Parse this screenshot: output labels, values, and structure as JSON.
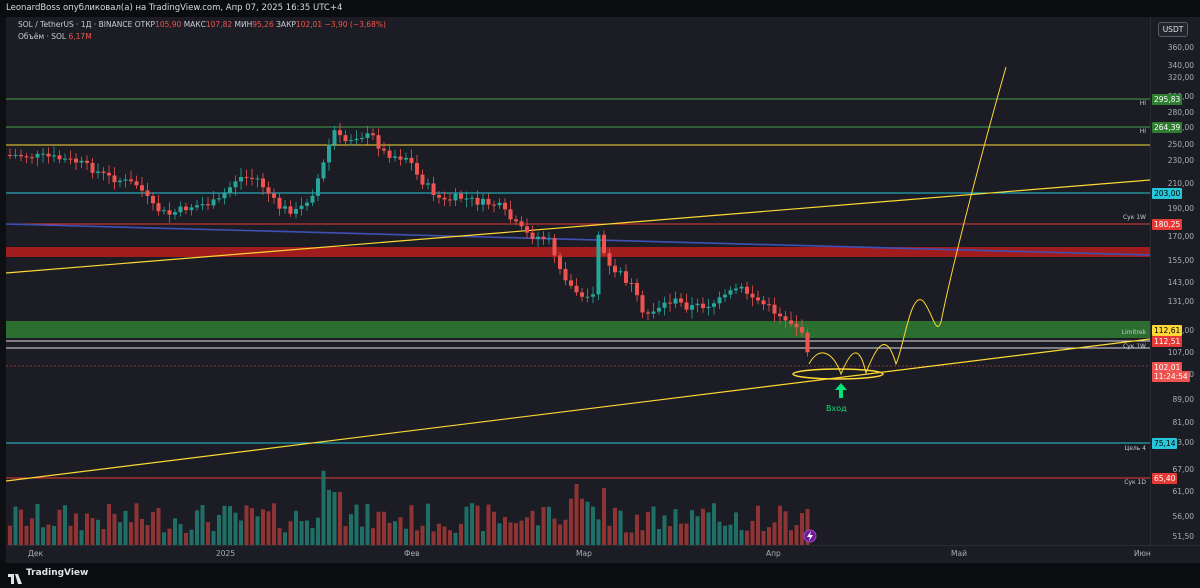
{
  "header": {
    "attribution": "LeonardBoss опубликовал(а) на TradingView.com, Апр 07, 2025 16:35 UTC+4"
  },
  "legend": {
    "symbol": "SOL / TetherUS · 1Д · BINANCE",
    "open_label": "ОТКР",
    "open": "105,90",
    "high_label": "МАКС",
    "high": "107,82",
    "low_label": "МИН",
    "low": "95,26",
    "close_label": "ЗАКР",
    "close": "102,01",
    "change": "−3,90 (−3,68%)",
    "volume_label": "Объём · SOL",
    "volume": "6,17M"
  },
  "currency": "USDT",
  "price_ticks": [
    "360,00",
    "340,00",
    "320,00",
    "300,00",
    "280,00",
    "265,00",
    "250,00",
    "230,00",
    "210,00",
    "190,00",
    "170,00",
    "155,00",
    "143,00",
    "131,00",
    "120,00",
    "107,00",
    "99,00",
    "89,00",
    "81,00",
    "73,00",
    "67,00",
    "61,00",
    "56,00",
    "51,50"
  ],
  "badges": [
    {
      "text": "295,83",
      "bg": "#2e7d32",
      "fg": "#ffffff",
      "label": "HI"
    },
    {
      "text": "264,39",
      "bg": "#2e7d32",
      "fg": "#ffffff",
      "label": "HI"
    },
    {
      "text": "203,00",
      "bg": "#26c6da",
      "fg": "#000000",
      "label": ""
    },
    {
      "text": "180,25",
      "bg": "#e53935",
      "fg": "#ffffff",
      "label": "Сук 1W"
    },
    {
      "text": "112,61",
      "bg": "#fdd835",
      "fg": "#000000",
      "label": "Limitrek"
    },
    {
      "text": "112,51",
      "bg": "#e53935",
      "fg": "#ffffff",
      "label": "Сук 1W"
    },
    {
      "text": "102,01",
      "bg": "#ef5350",
      "fg": "#ffffff",
      "label": ""
    },
    {
      "text": "11:24:54",
      "bg": "#ef5350",
      "fg": "#ffffff",
      "label": ""
    },
    {
      "text": "75,14",
      "bg": "#26c6da",
      "fg": "#000000",
      "label": "Цель 4"
    },
    {
      "text": "65,40",
      "bg": "#e53935",
      "fg": "#ffffff",
      "label": "Сук 1D"
    }
  ],
  "time_labels": [
    "Дек",
    "2025",
    "Фев",
    "Мар",
    "Апр",
    "Май",
    "Июн"
  ],
  "annotation": {
    "entry_label": "Вход"
  },
  "footer": {
    "brand": "TradingView"
  },
  "colors": {
    "up": "#26a69a",
    "down": "#ef5350",
    "accent": "#fdd835",
    "bg": "#1c1d24"
  }
}
